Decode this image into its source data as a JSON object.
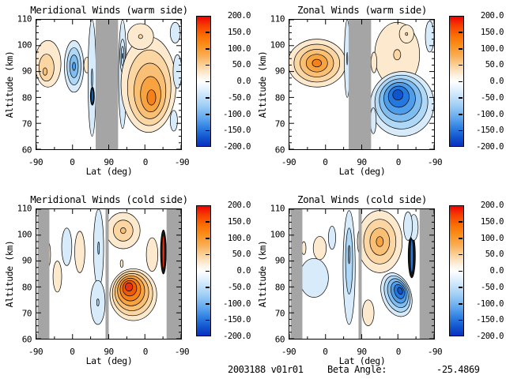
{
  "footer": {
    "dataset_id": "2003188 v01r01",
    "beta_angle_label": "Beta Angle:",
    "beta_angle_value": "-25.4869"
  },
  "colorbar": {
    "min": -200.0,
    "max": 200.0,
    "tick_step": 50.0,
    "labels": [
      "200.0",
      "150.0",
      "100.0",
      "50.0",
      "0.0",
      "-50.0",
      "-100.0",
      "-150.0",
      "-200.0"
    ],
    "gradient_stops": [
      [
        0,
        "#EE0100"
      ],
      [
        7,
        "#F63E00"
      ],
      [
        14,
        "#FB6A00"
      ],
      [
        22,
        "#F98F1B"
      ],
      [
        30,
        "#F9AC52"
      ],
      [
        38,
        "#FBD39C"
      ],
      [
        45,
        "#FDEFDC"
      ],
      [
        50,
        "#FFFFFF"
      ],
      [
        55,
        "#E8F4FD"
      ],
      [
        62,
        "#C3E2FA"
      ],
      [
        70,
        "#97CAF5"
      ],
      [
        78,
        "#62A9EE"
      ],
      [
        86,
        "#2F7FE3"
      ],
      [
        93,
        "#1356D0"
      ],
      [
        100,
        "#0A31C0"
      ]
    ]
  },
  "palettes": {
    "pos": [
      "#FCE9CE",
      "#FBD6A3",
      "#F9BF74",
      "#F7A340",
      "#F58118",
      "#EF5B05",
      "#E63312"
    ],
    "neg": [
      "#D7EBFA",
      "#AFD7F6",
      "#7FBCF0",
      "#4F9CE8",
      "#2578DE",
      "#0F55CE",
      "#0A38C0"
    ],
    "mask": "#A5A5A5",
    "dense": "#141414"
  },
  "chart_data": [
    {
      "type": "contour",
      "title": "Meridional Winds (warm side)",
      "xlabel": "Lat (deg)",
      "ylabel": "Altitude (km)",
      "x_ticks": [
        "-90",
        "0",
        "90",
        "0",
        "-90"
      ],
      "y_ticks": [
        "110",
        "100",
        "90",
        "80",
        "70",
        "60"
      ],
      "y_range_km": [
        60,
        110
      ],
      "value_range": [
        -200,
        200
      ],
      "x_axis_note": "latitude sweeps -90 to 90 then back to -90",
      "masks": [
        {
          "x0": 0.41,
          "x1": 0.565
        }
      ],
      "features": [
        {
          "sign": "pos",
          "peak_value": 75,
          "cx": 0.08,
          "cy": 0.34,
          "rx": 0.09,
          "ry": 0.18,
          "levels": 3,
          "dx": -0.02,
          "dy": 0.06
        },
        {
          "sign": "neg",
          "peak_value": -110,
          "cx": 0.26,
          "cy": 0.36,
          "rx": 0.067,
          "ry": 0.2,
          "levels": 4
        },
        {
          "sign": "pos",
          "peak_value": 30,
          "cx": 0.35,
          "cy": 0.35,
          "rx": 0.022,
          "ry": 0.06,
          "levels": 1
        },
        {
          "sign": "neg",
          "peak_value": -60,
          "cx": 0.385,
          "cy": 0.45,
          "rx": 0.028,
          "ry": 0.45,
          "levels": 2
        },
        {
          "sign": "neg",
          "peak_value": -140,
          "cx": 0.387,
          "cy": 0.59,
          "rx": 0.014,
          "ry": 0.07,
          "render": "dense"
        },
        {
          "sign": "neg",
          "peak_value": -80,
          "cx": 0.596,
          "cy": 0.42,
          "rx": 0.028,
          "ry": 0.42,
          "levels": 2
        },
        {
          "sign": "neg",
          "peak_value": -120,
          "cx": 0.596,
          "cy": 0.28,
          "rx": 0.018,
          "ry": 0.13,
          "levels": 3
        },
        {
          "sign": "pos",
          "peak_value": 130,
          "cx": 0.775,
          "cy": 0.5,
          "rx": 0.19,
          "ry": 0.37,
          "levels": 5,
          "dx": 0.02,
          "dy": 0.1
        },
        {
          "sign": "pos",
          "peak_value": 50,
          "cx": 0.72,
          "cy": 0.13,
          "rx": 0.09,
          "ry": 0.1,
          "levels": 2
        },
        {
          "sign": "neg",
          "peak_value": -40,
          "cx": 0.975,
          "cy": 0.4,
          "rx": 0.03,
          "ry": 0.13,
          "levels": 1
        },
        {
          "sign": "neg",
          "peak_value": -40,
          "cx": 0.96,
          "cy": 0.1,
          "rx": 0.035,
          "ry": 0.08,
          "levels": 1
        },
        {
          "sign": "neg",
          "peak_value": -40,
          "cx": 0.95,
          "cy": 0.78,
          "rx": 0.025,
          "ry": 0.08,
          "levels": 1
        }
      ]
    },
    {
      "type": "contour",
      "title": "Zonal Winds (warm side)",
      "xlabel": "Lat (deg)",
      "ylabel": "Altitude (km)",
      "x_ticks": [
        "-90",
        "0",
        "90",
        "0",
        "-90"
      ],
      "y_ticks": [
        "110",
        "100",
        "90",
        "80",
        "70",
        "60"
      ],
      "y_range_km": [
        60,
        110
      ],
      "value_range": [
        -200,
        200
      ],
      "x_axis_note": "latitude sweeps -90 to 90 then back to -90",
      "masks": [
        {
          "x0": 0.41,
          "x1": 0.565
        }
      ],
      "features": [
        {
          "sign": "pos",
          "peak_value": 110,
          "cx": 0.19,
          "cy": 0.335,
          "rx": 0.2,
          "ry": 0.185,
          "levels": 5
        },
        {
          "sign": "pos",
          "peak_value": 40,
          "cx": 0.745,
          "cy": 0.27,
          "rx": 0.155,
          "ry": 0.25,
          "levels": 2
        },
        {
          "sign": "pos",
          "peak_value": 60,
          "cx": 0.81,
          "cy": 0.11,
          "rx": 0.05,
          "ry": 0.07,
          "levels": 2
        },
        {
          "sign": "neg",
          "peak_value": -160,
          "cx": 0.78,
          "cy": 0.65,
          "rx": 0.22,
          "ry": 0.25,
          "levels": 6,
          "dx": -0.03,
          "dy": -0.07
        },
        {
          "sign": "neg",
          "peak_value": -90,
          "cx": 0.4,
          "cy": 0.3,
          "rx": 0.02,
          "ry": 0.3,
          "levels": 2
        },
        {
          "sign": "neg",
          "peak_value": -40,
          "cx": 0.97,
          "cy": 0.13,
          "rx": 0.03,
          "ry": 0.12,
          "levels": 1
        },
        {
          "sign": "pos",
          "peak_value": 30,
          "cx": 0.585,
          "cy": 0.33,
          "rx": 0.02,
          "ry": 0.08,
          "levels": 1
        },
        {
          "sign": "neg",
          "peak_value": -30,
          "cx": 0.58,
          "cy": 0.78,
          "rx": 0.02,
          "ry": 0.1,
          "levels": 1
        }
      ]
    },
    {
      "type": "contour",
      "title": "Meridional Winds (cold side)",
      "xlabel": "Lat (deg)",
      "ylabel": "Altitude (km)",
      "x_ticks": [
        "-90",
        "0",
        "90",
        "0",
        "-90"
      ],
      "y_ticks": [
        "110",
        "100",
        "90",
        "80",
        "70",
        "60"
      ],
      "y_range_km": [
        60,
        110
      ],
      "value_range": [
        -200,
        200
      ],
      "x_axis_note": "latitude sweeps -90 to 90 then back to -90",
      "masks": [
        {
          "x0": 0.008,
          "x1": 0.09
        },
        {
          "x0": 0.478,
          "x1": 0.5
        },
        {
          "x0": 0.9,
          "x1": 1.0
        }
      ],
      "features": [
        {
          "sign": "pos",
          "peak_value": 190,
          "cx": 0.67,
          "cy": 0.66,
          "rx": 0.162,
          "ry": 0.2,
          "levels": 7,
          "dx": -0.03,
          "dy": -0.06
        },
        {
          "sign": "pos",
          "peak_value": 80,
          "cx": 0.6,
          "cy": 0.165,
          "rx": 0.117,
          "ry": 0.14,
          "levels": 3
        },
        {
          "sign": "neg",
          "peak_value": -60,
          "cx": 0.43,
          "cy": 0.3,
          "rx": 0.035,
          "ry": 0.3,
          "levels": 2
        },
        {
          "sign": "neg",
          "peak_value": -60,
          "cx": 0.425,
          "cy": 0.72,
          "rx": 0.05,
          "ry": 0.17,
          "levels": 2
        },
        {
          "sign": "neg",
          "peak_value": -40,
          "cx": 0.21,
          "cy": 0.29,
          "rx": 0.035,
          "ry": 0.145,
          "levels": 1
        },
        {
          "sign": "pos",
          "peak_value": 40,
          "cx": 0.3,
          "cy": 0.33,
          "rx": 0.035,
          "ry": 0.16,
          "levels": 1
        },
        {
          "sign": "pos",
          "peak_value": 30,
          "cx": 0.145,
          "cy": 0.52,
          "rx": 0.03,
          "ry": 0.12,
          "levels": 1
        },
        {
          "sign": "pos",
          "peak_value": 30,
          "cx": 0.08,
          "cy": 0.35,
          "rx": 0.018,
          "ry": 0.1,
          "levels": 1
        },
        {
          "sign": "pos",
          "peak_value": 40,
          "cx": 0.8,
          "cy": 0.35,
          "rx": 0.04,
          "ry": 0.13,
          "levels": 1
        },
        {
          "sign": "pos",
          "peak_value": 150,
          "cx": 0.878,
          "cy": 0.33,
          "rx": 0.02,
          "ry": 0.17,
          "render": "dense"
        },
        {
          "sign": "pos",
          "peak_value": 30,
          "cx": 0.59,
          "cy": 0.42,
          "rx": 0.01,
          "ry": 0.03,
          "levels": 1
        }
      ]
    },
    {
      "type": "contour",
      "title": "Zonal Winds (cold side)",
      "xlabel": "Lat (deg)",
      "ylabel": "Altitude (km)",
      "x_ticks": [
        "-90",
        "0",
        "90",
        "0",
        "-90"
      ],
      "y_ticks": [
        "110",
        "100",
        "90",
        "80",
        "70",
        "60"
      ],
      "y_range_km": [
        60,
        110
      ],
      "value_range": [
        -200,
        200
      ],
      "x_axis_note": "latitude sweeps -90 to 90 then back to -90",
      "masks": [
        {
          "x0": 0.008,
          "x1": 0.09
        },
        {
          "x0": 0.478,
          "x1": 0.5
        },
        {
          "x0": 0.9,
          "x1": 1.0
        }
      ],
      "features": [
        {
          "sign": "pos",
          "peak_value": 90,
          "cx": 0.625,
          "cy": 0.25,
          "rx": 0.155,
          "ry": 0.24,
          "levels": 4
        },
        {
          "sign": "neg",
          "peak_value": -90,
          "cx": 0.413,
          "cy": 0.45,
          "rx": 0.042,
          "ry": 0.44,
          "levels": 3,
          "dy": -0.1
        },
        {
          "sign": "neg",
          "peak_value": -140,
          "cx": 0.74,
          "cy": 0.66,
          "rx": 0.1,
          "ry": 0.175,
          "levels": 6,
          "dx": 0.025,
          "dy": -0.03,
          "rot": -20
        },
        {
          "sign": "neg",
          "peak_value": -150,
          "cx": 0.846,
          "cy": 0.36,
          "rx": 0.025,
          "ry": 0.17,
          "render": "dense"
        },
        {
          "sign": "neg",
          "peak_value": -40,
          "cx": 0.86,
          "cy": 0.14,
          "rx": 0.03,
          "ry": 0.1,
          "levels": 1
        },
        {
          "sign": "neg",
          "peak_value": -40,
          "cx": 0.17,
          "cy": 0.53,
          "rx": 0.1,
          "ry": 0.15,
          "levels": 1
        },
        {
          "sign": "pos",
          "peak_value": 30,
          "cx": 0.21,
          "cy": 0.3,
          "rx": 0.045,
          "ry": 0.09,
          "levels": 1
        },
        {
          "sign": "pos",
          "peak_value": 30,
          "cx": 0.1,
          "cy": 0.3,
          "rx": 0.015,
          "ry": 0.05,
          "levels": 1
        },
        {
          "sign": "neg",
          "peak_value": -40,
          "cx": 0.295,
          "cy": 0.22,
          "rx": 0.025,
          "ry": 0.09,
          "levels": 1
        },
        {
          "sign": "pos",
          "peak_value": 30,
          "cx": 0.545,
          "cy": 0.8,
          "rx": 0.04,
          "ry": 0.1,
          "levels": 1
        },
        {
          "sign": "neg",
          "peak_value": -40,
          "cx": 0.82,
          "cy": 0.13,
          "rx": 0.03,
          "ry": 0.11,
          "levels": 1
        }
      ]
    }
  ]
}
